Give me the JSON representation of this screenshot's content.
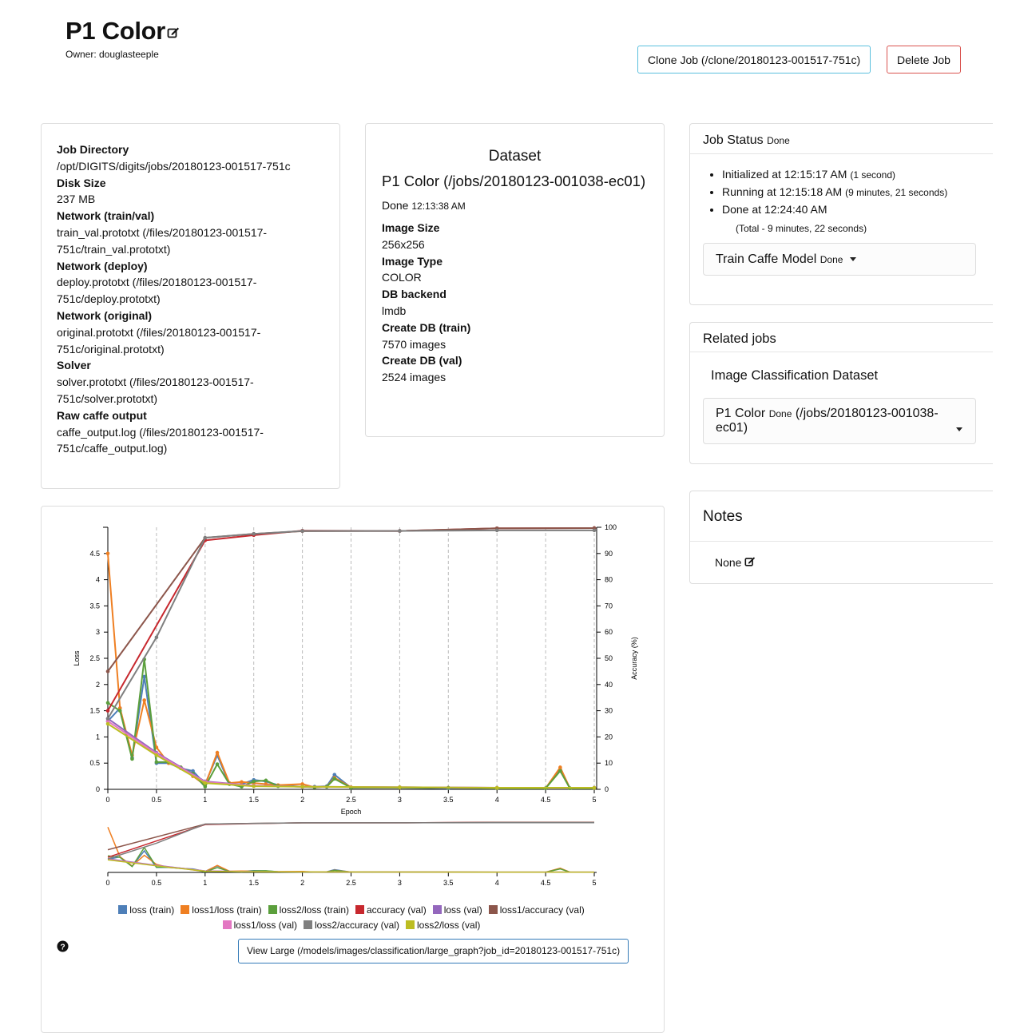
{
  "header": {
    "title": "P1 Color",
    "owner": "Owner: douglasteeple",
    "clone_label": "Clone Job (/clone/20180123-001517-751c)",
    "delete_label": "Delete Job"
  },
  "job_info": {
    "items": [
      {
        "label": "Job Directory",
        "value": "/opt/DIGITS/digits/jobs/20180123-001517-751c"
      },
      {
        "label": "Disk Size",
        "value": "237 MB"
      },
      {
        "label": "Network (train/val)",
        "value": "train_val.prototxt (/files/20180123-001517-751c/train_val.prototxt)"
      },
      {
        "label": "Network (deploy)",
        "value": "deploy.prototxt (/files/20180123-001517-751c/deploy.prototxt)"
      },
      {
        "label": "Network (original)",
        "value": "original.prototxt (/files/20180123-001517-751c/original.prototxt)"
      },
      {
        "label": "Solver",
        "value": "solver.prototxt (/files/20180123-001517-751c/solver.prototxt)"
      },
      {
        "label": "Raw caffe output",
        "value": "caffe_output.log (/files/20180123-001517-751c/caffe_output.log)"
      }
    ]
  },
  "dataset": {
    "heading": "Dataset",
    "name": "P1 Color (/jobs/20180123-001038-ec01)",
    "status": "Done",
    "time": "12:13:38 AM",
    "items": [
      {
        "label": "Image Size",
        "value": "256x256"
      },
      {
        "label": "Image Type",
        "value": "COLOR"
      },
      {
        "label": "DB backend",
        "value": "lmdb"
      },
      {
        "label": "Create DB (train)",
        "value": "7570 images"
      },
      {
        "label": "Create DB (val)",
        "value": "2524 images"
      }
    ]
  },
  "job_status": {
    "heading": "Job Status",
    "state": "Done",
    "events": [
      {
        "text": "Initialized at 12:15:17 AM",
        "note": "(1 second)"
      },
      {
        "text": "Running at 12:15:18 AM",
        "note": "(9 minutes, 21 seconds)"
      },
      {
        "text": "Done at 12:24:40 AM",
        "note": ""
      }
    ],
    "total": "(Total - 9 minutes, 22 seconds)",
    "task_label": "Train Caffe Model",
    "task_state": "Done"
  },
  "related": {
    "heading": "Related jobs",
    "subheading": "Image Classification Dataset",
    "job_name": "P1 Color",
    "job_state": "Done",
    "job_path": "(/jobs/20180123-001038-ec01)"
  },
  "notes": {
    "heading": "Notes",
    "value": "None"
  },
  "view_large_label": "View Large (/models/images/classification/large_graph?job_id=20180123-001517-751c)",
  "colors": {
    "loss_train": "#4e7fb8",
    "loss1_train": "#ef7f22",
    "loss2_train": "#5b9f3c",
    "accuracy_val": "#c7282e",
    "loss_val": "#9467bd",
    "loss1acc_val": "#8c564b",
    "loss1loss_val": "#e377c2",
    "loss2acc_val": "#7f7f7f",
    "loss2loss_val": "#bcbd22"
  },
  "chart_data": {
    "type": "line",
    "xlabel": "Epoch",
    "ylabel": "Loss",
    "y2label": "Accuracy (%)",
    "xlim": [
      0,
      5
    ],
    "ylim": [
      0,
      5
    ],
    "y2lim": [
      0,
      100
    ],
    "x_ticks": [
      "0",
      "0.5",
      "1",
      "1.5",
      "2",
      "2.5",
      "3",
      "3.5",
      "4",
      "4.5",
      "5"
    ],
    "y_ticks": [
      "0",
      "0.5",
      "1",
      "1.5",
      "2",
      "2.5",
      "3",
      "3.5",
      "4",
      "4.5"
    ],
    "y2_ticks": [
      "0",
      "10",
      "20",
      "30",
      "40",
      "50",
      "60",
      "70",
      "80",
      "90",
      "100"
    ],
    "grid": "vertical dashed",
    "legend_position": "bottom",
    "series": [
      {
        "name": "loss (train)",
        "axis": "y",
        "color_key": "loss_train",
        "x": [
          0,
          0.125,
          0.25,
          0.375,
          0.5,
          0.625,
          0.75,
          0.875,
          1,
          1.125,
          1.25,
          1.375,
          1.5,
          1.625,
          1.75,
          2,
          2.125,
          2.25,
          2.33,
          2.5,
          3,
          3.5,
          4,
          4.5,
          4.65,
          4.75,
          5
        ],
        "y": [
          1.3,
          1.55,
          0.6,
          2.15,
          0.5,
          0.5,
          0.4,
          0.35,
          0.1,
          0.65,
          0.1,
          0.1,
          0.18,
          0.15,
          0.08,
          0.05,
          0.05,
          0.06,
          0.28,
          0.03,
          0.03,
          0.02,
          0.02,
          0.02,
          0.38,
          0.02,
          0.02
        ]
      },
      {
        "name": "loss1/loss (train)",
        "axis": "y",
        "color_key": "loss1_train",
        "x": [
          0,
          0.125,
          0.25,
          0.375,
          0.5,
          0.625,
          0.75,
          0.875,
          1,
          1.125,
          1.25,
          1.375,
          1.5,
          1.625,
          1.75,
          2,
          2.125,
          2.25,
          2.33,
          2.5,
          3,
          3.5,
          4,
          4.5,
          4.65,
          4.75,
          5
        ],
        "y": [
          4.5,
          1.55,
          0.65,
          1.7,
          0.8,
          0.5,
          0.42,
          0.25,
          0.08,
          0.7,
          0.12,
          0.14,
          0.12,
          0.1,
          0.08,
          0.1,
          0.04,
          0.05,
          0.22,
          0.04,
          0.03,
          0.03,
          0.02,
          0.02,
          0.42,
          0.02,
          0.02
        ]
      },
      {
        "name": "loss2/loss (train)",
        "axis": "y",
        "color_key": "loss2_train",
        "x": [
          0,
          0.125,
          0.25,
          0.375,
          0.5,
          0.625,
          0.75,
          0.875,
          1,
          1.125,
          1.25,
          1.375,
          1.5,
          1.625,
          1.75,
          2,
          2.125,
          2.25,
          2.33,
          2.5,
          3,
          3.5,
          4,
          4.5,
          4.65,
          4.75,
          5
        ],
        "y": [
          1.65,
          1.5,
          0.58,
          2.48,
          0.52,
          0.52,
          0.42,
          0.3,
          0.05,
          0.48,
          0.1,
          0.05,
          0.15,
          0.17,
          0.06,
          0.05,
          0.04,
          0.05,
          0.2,
          0.03,
          0.03,
          0.03,
          0.02,
          0.02,
          0.35,
          0.02,
          0.02
        ]
      },
      {
        "name": "accuracy (val)",
        "axis": "y2",
        "color_key": "accuracy_val",
        "x": [
          0,
          1,
          1.5,
          2,
          3,
          4,
          5
        ],
        "y": [
          30,
          95,
          97,
          98.7,
          98.6,
          99.6,
          99.7
        ]
      },
      {
        "name": "loss (val)",
        "axis": "y",
        "color_key": "loss_val",
        "x": [
          0,
          0.5,
          1,
          1.5,
          2,
          3,
          4,
          5
        ],
        "y": [
          1.35,
          0.7,
          0.15,
          0.07,
          0.05,
          0.04,
          0.03,
          0.03
        ]
      },
      {
        "name": "loss1/accuracy (val)",
        "axis": "y2",
        "color_key": "loss1acc_val",
        "x": [
          0,
          1,
          1.5,
          2,
          3,
          4,
          5
        ],
        "y": [
          45,
          96,
          97.5,
          98.5,
          98.6,
          99.6,
          99.7
        ]
      },
      {
        "name": "loss1/loss (val)",
        "axis": "y",
        "color_key": "loss1loss_val",
        "x": [
          0,
          0.5,
          1,
          1.5,
          2,
          3,
          4,
          5
        ],
        "y": [
          1.3,
          0.68,
          0.14,
          0.07,
          0.05,
          0.04,
          0.03,
          0.03
        ]
      },
      {
        "name": "loss2/accuracy (val)",
        "axis": "y2",
        "color_key": "loss2acc_val",
        "x": [
          0,
          0.5,
          1,
          1.5,
          2,
          3,
          4,
          5
        ],
        "y": [
          27,
          58,
          96,
          97.5,
          98.6,
          98.6,
          98.8,
          98.8
        ]
      },
      {
        "name": "loss2/loss (val)",
        "axis": "y",
        "color_key": "loss2loss_val",
        "x": [
          0,
          0.5,
          1,
          1.5,
          2,
          3,
          4,
          5
        ],
        "y": [
          1.25,
          0.65,
          0.12,
          0.06,
          0.05,
          0.04,
          0.03,
          0.03
        ]
      }
    ]
  }
}
